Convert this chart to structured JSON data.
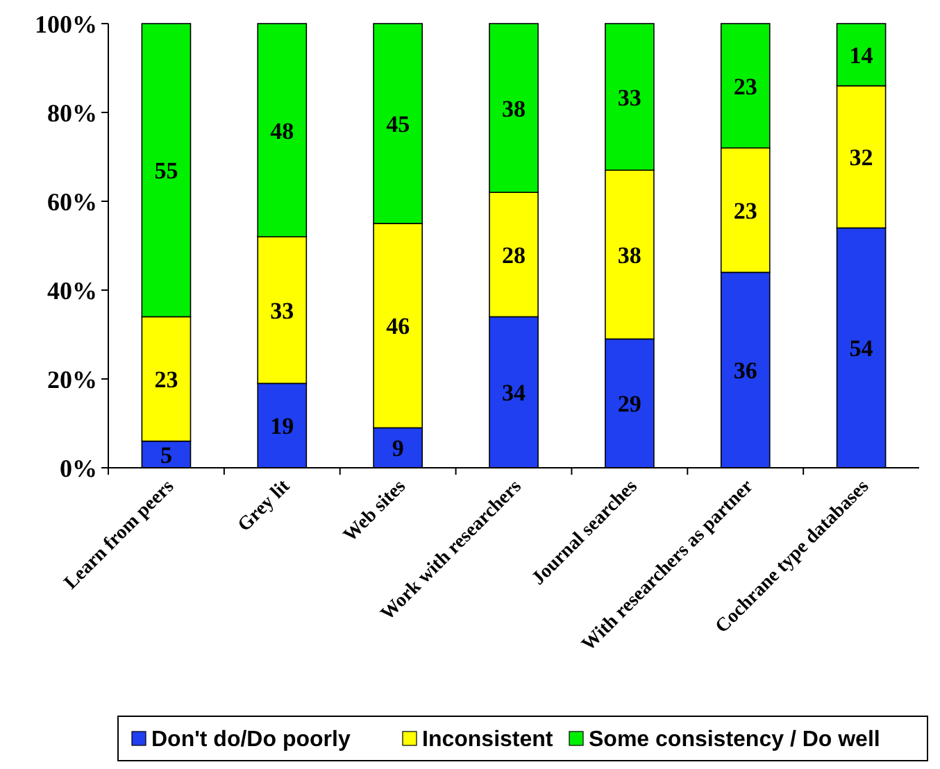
{
  "chart_data": {
    "type": "bar",
    "stacked": true,
    "categories": [
      "Learn from peers",
      "Grey lit",
      "Web sites",
      "Work with researchers",
      "Journal searches",
      "With researchers as partner",
      "Cochrane type databases"
    ],
    "series": [
      {
        "name": "Don't do/Do poorly",
        "color": "#1f3ff0",
        "values": [
          6,
          19,
          9,
          34,
          29,
          44,
          54
        ],
        "value_labels": [
          null,
          "19",
          "9",
          "34",
          "29",
          null,
          "54"
        ]
      },
      {
        "name": "Inconsistent",
        "color": "#ffff00",
        "values": [
          28,
          33,
          46,
          28,
          38,
          28,
          32
        ],
        "value_labels": [
          null,
          "33",
          "46",
          "28",
          "38",
          null,
          "32"
        ]
      },
      {
        "name": "Some consistency / Do well",
        "color": "#00f000",
        "values": [
          66,
          48,
          45,
          38,
          33,
          28,
          14
        ],
        "value_labels": [
          null,
          "48",
          "45",
          "38",
          "33",
          null,
          "14"
        ]
      }
    ],
    "annotations": [
      "5",
      "36",
      "23",
      "23",
      "55",
      "23"
    ],
    "ylim": [
      0,
      100
    ],
    "yticks": [
      {
        "value": 0,
        "label": "0%"
      },
      {
        "value": 20,
        "label": "20%"
      },
      {
        "value": 40,
        "label": "40%"
      },
      {
        "value": 60,
        "label": "60%"
      },
      {
        "value": 80,
        "label": "80%"
      },
      {
        "value": 100,
        "label": "100%"
      }
    ],
    "grid": false,
    "legend": "bottom"
  }
}
